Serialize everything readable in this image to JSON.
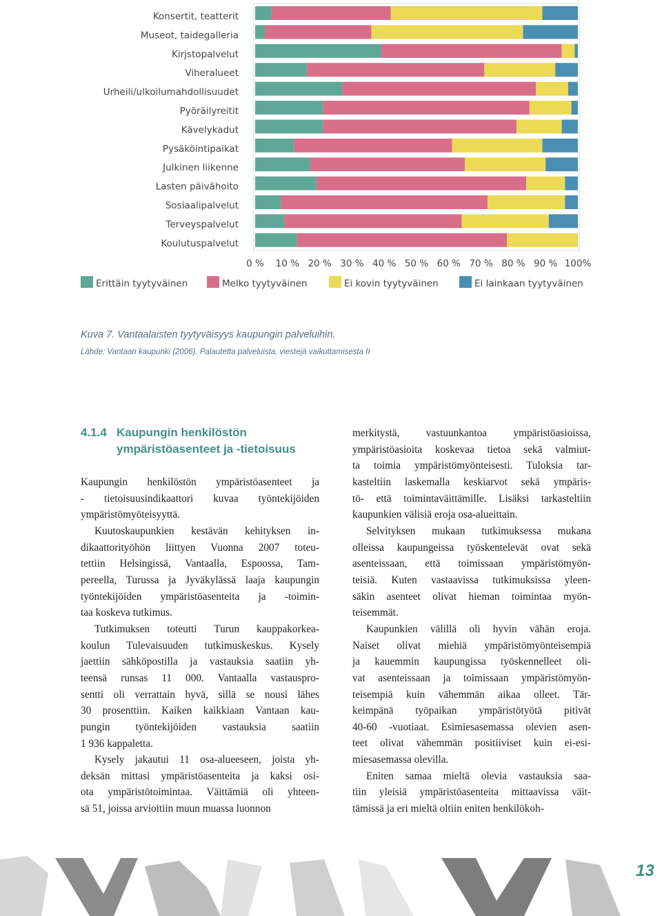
{
  "chart_data": {
    "type": "stacked-barh",
    "categories": [
      "Konsertit, teatterit",
      "Museot, taidegalleria",
      "Kirjstopalvelut",
      "Viheralueet",
      "Urheili/ulkoilumahdollisuudet",
      "Pyöräilyreitit",
      "Kävelykadut",
      "Pysäköintipaikat",
      "Julkinen liikenne",
      "Lasten päivähoito",
      "Sosiaalipalvelut",
      "Terveyspalvelut",
      "Koulutuspalvelut"
    ],
    "series": [
      {
        "name": "Erittäin tyytyväinen",
        "color": "#5fa898",
        "values": [
          5,
          3,
          39,
          16,
          27,
          21,
          21,
          12,
          17,
          19,
          8,
          9,
          13
        ]
      },
      {
        "name": "Melko tyytyväinen",
        "color": "#d96e8a",
        "values": [
          37,
          33,
          56,
          55,
          60,
          64,
          60,
          49,
          48,
          65,
          64,
          55,
          65
        ]
      },
      {
        "name": "Ei kovin tyytyväinen",
        "color": "#ecd955",
        "values": [
          47,
          47,
          4,
          22,
          10,
          13,
          14,
          28,
          25,
          12,
          24,
          27,
          22
        ]
      },
      {
        "name": "Ei lainkaan tyytyväinen",
        "color": "#4a8fb3",
        "values": [
          11,
          17,
          1,
          7,
          3,
          2,
          5,
          11,
          10,
          4,
          4,
          9,
          0
        ]
      }
    ],
    "xlim": [
      0,
      100
    ],
    "xticks": [
      {
        "value": 0,
        "label": "0 %"
      },
      {
        "value": 10,
        "label": "10 %"
      },
      {
        "value": 20,
        "label": "20 %"
      },
      {
        "value": 30,
        "label": "30 %"
      },
      {
        "value": 40,
        "label": "40 %"
      },
      {
        "value": 50,
        "label": "50 %"
      },
      {
        "value": 60,
        "label": "60 %"
      },
      {
        "value": 70,
        "label": "70 %"
      },
      {
        "value": 80,
        "label": "80 %"
      },
      {
        "value": 90,
        "label": "90 %"
      },
      {
        "value": 100,
        "label": "100%"
      }
    ],
    "legend": "bottom"
  },
  "caption": {
    "title": "Kuva 7. Vantaalaisten tyytyväisyys kaupungin palveluihin.",
    "source": "Lähde: Vantaan kaupunki (2006). Palautetta palveluista, viestejä vaikuttamisesta II"
  },
  "article": {
    "heading": {
      "number": "4.1.4",
      "lines": [
        "Kaupungin henkilöstön",
        "ympäristöasenteet ja -tietoisuus"
      ]
    },
    "left_column": [
      [
        "Kaupungin henkilöstön ympäristöasenteet ja",
        "- tietoisuusindikaattori kuvaa työntekijöiden",
        "ympäristömyöteisyyttä."
      ],
      [
        "Kuutoskaupunkien kestävän kehityksen in-",
        "dikaattorityöhön liittyen Vuonna 2007 toteu-",
        "tettiin Helsingissä, Vantaalla, Espoossa, Tam-",
        "pereella, Turussa ja Jyväkylässä laaja kaupungin",
        "työntekijöiden ympäristöasenteita ja -toimin-",
        "taa koskeva tutkimus."
      ],
      [
        "Tutkimuksen toteutti Turun kauppakorkea-",
        "koulun Tulevaisuuden tutkimuskeskus. Kysely",
        "jaettiin sähköpostilla ja vastauksia saatiin yh-",
        "teensä runsas 11 000. Vantaalla vastauspro-",
        "sentti oli verrattain hyvä, sillä se nousi lähes",
        "30 prosenttiin. Kaiken kaikkiaan Vantaan kau-",
        "pungin työntekijöiden vastauksia saatiin",
        "1 936 kappaletta."
      ],
      [
        "Kysely jakautui 11 osa-alueeseen, joista yh-",
        "deksän mittasi ympäristöasenteita ja kaksi osi-",
        "ota ympäristötoimintaa. Väittämiä oli yhteen-",
        "sä 51, joissa arvioitiin muun muassa luonnon"
      ]
    ],
    "right_column": [
      [
        "merkitystä, vastuunkantoa ympäristöasioissa,",
        "ympäristöasioita koskevaa tietoa sekä valmiut-",
        "ta toimia ympäristömyönteisesti. Tuloksia tar-",
        "kasteltiin laskemalla keskiarvot sekä ympäris-",
        "tö- että toimintaväittämille. Lisäksi tarkasteltiin",
        "kaupunkien välisiä eroja osa-alueittain."
      ],
      [
        "Selvityksen mukaan tutkimuksessa mukana",
        "olleissa kaupungeissa työskentelevät ovat sekä",
        "asenteissaan, että toimissaan ympäristömyön-",
        "teisiä. Kuten vastaavissa tutkimuksissa yleen-",
        "säkin asenteet olivat hieman toimintaa myön-",
        "teisemmät."
      ],
      [
        "Kaupunkien välillä oli hyvin vähän eroja.",
        "Naiset olivat miehiä ympäristömyönteisempiä",
        "ja kauemmin kaupungissa työskennelleet oli-",
        "vat asenteissaan ja toimissaan ympäristömyön-",
        "teisempiä kuin vähemmän aikaa olleet. Tär-",
        "keimpänä työpaikan ympäristötyötä pitivät",
        "40-60 -vuotiaat. Esimiesasemassa olevien asen-",
        "teet olivat vähemmän positiiviset kuin ei-esi-",
        "miesasemassa olevilla."
      ],
      [
        "Eniten samaa mieltä olevia vastauksia saa-",
        "tiin yleisiä ympäristöasenteita mittaavissa väit-",
        "tämissä ja eri mieltä oltiin eniten henkilökoh-"
      ]
    ]
  },
  "page_number": "13"
}
